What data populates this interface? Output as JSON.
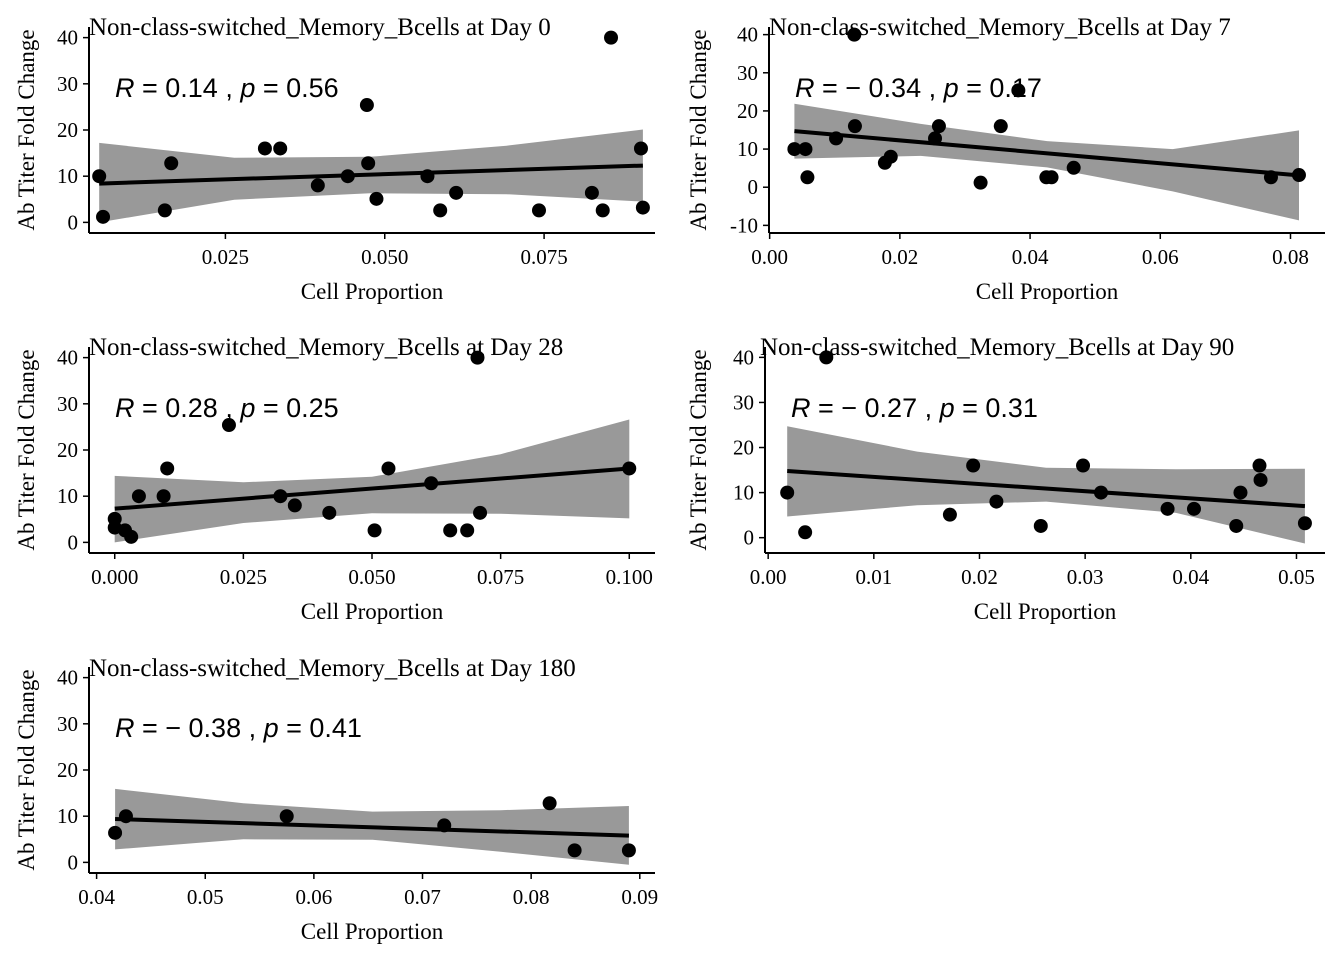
{
  "chart_data": [
    {
      "type": "scatter",
      "title": "Non-class-switched_Memory_Bcells at Day 0",
      "xlabel": "Cell Proportion",
      "ylabel": "Ab Titer Fold Change",
      "stat_parts": [
        "R",
        " = 0.14 , ",
        "p",
        " = 0.56"
      ],
      "xlim": [
        0.0036,
        0.0924
      ],
      "ylim": [
        -2.3,
        42.3
      ],
      "xticks": [
        0.025,
        0.05,
        0.075
      ],
      "xtick_labels": [
        "0.025",
        "0.050",
        "0.075"
      ],
      "yticks": [
        0,
        10,
        20,
        30,
        40
      ],
      "ytick_labels": [
        "0",
        "10",
        "20",
        "30",
        "40"
      ],
      "points": [
        [
          0.0052,
          10
        ],
        [
          0.0058,
          1.2
        ],
        [
          0.0155,
          2.6
        ],
        [
          0.0165,
          12.8
        ],
        [
          0.0312,
          16
        ],
        [
          0.0336,
          16
        ],
        [
          0.0395,
          8
        ],
        [
          0.0442,
          10
        ],
        [
          0.0472,
          25.4
        ],
        [
          0.0474,
          12.8
        ],
        [
          0.0487,
          5.1
        ],
        [
          0.0567,
          10
        ],
        [
          0.0587,
          2.6
        ],
        [
          0.0612,
          6.4
        ],
        [
          0.0742,
          2.6
        ],
        [
          0.0825,
          6.4
        ],
        [
          0.0842,
          2.6
        ],
        [
          0.0855,
          40
        ],
        [
          0.0902,
          16
        ],
        [
          0.0905,
          3.2
        ]
      ],
      "fit": {
        "x": [
          0.0052,
          0.0905
        ],
        "y": [
          8.4,
          12.3
        ]
      },
      "band": {
        "x": [
          0.0052,
          0.0264,
          0.0477,
          0.0691,
          0.0905
        ],
        "lower": [
          0.0,
          4.9,
          6.3,
          6.1,
          4.5
        ],
        "upper": [
          17.2,
          14.0,
          14.2,
          16.6,
          20.1
        ]
      }
    },
    {
      "type": "scatter",
      "title": "Non-class-switched_Memory_Bcells at Day 7",
      "xlabel": "Cell Proportion",
      "ylabel": "Ab Titer Fold Change",
      "stat_parts": [
        "R",
        " = − 0.34 , ",
        "p",
        " = 0.17"
      ],
      "xlim": [
        -0.0001,
        0.0853
      ],
      "ylim": [
        -12.0,
        42.0
      ],
      "xticks": [
        0.0,
        0.02,
        0.04,
        0.06,
        0.08
      ],
      "xtick_labels": [
        "0.00",
        "0.02",
        "0.04",
        "0.06",
        "0.08"
      ],
      "yticks": [
        -10,
        0,
        10,
        20,
        30,
        40
      ],
      "ytick_labels": [
        "-10",
        "0",
        "10",
        "20",
        "30",
        "40"
      ],
      "points": [
        [
          0.0038,
          10
        ],
        [
          0.0055,
          10
        ],
        [
          0.0058,
          2.6
        ],
        [
          0.0102,
          12.8
        ],
        [
          0.013,
          40
        ],
        [
          0.0131,
          16
        ],
        [
          0.0177,
          6.4
        ],
        [
          0.0186,
          8
        ],
        [
          0.0254,
          12.8
        ],
        [
          0.026,
          16
        ],
        [
          0.0324,
          1.2
        ],
        [
          0.0355,
          16
        ],
        [
          0.0382,
          25.4
        ],
        [
          0.0425,
          2.6
        ],
        [
          0.0433,
          2.6
        ],
        [
          0.0467,
          5.1
        ],
        [
          0.077,
          2.6
        ],
        [
          0.0813,
          3.2
        ]
      ],
      "fit": {
        "x": [
          0.0038,
          0.0813
        ],
        "y": [
          14.7,
          3.1
        ]
      },
      "band": {
        "x": [
          0.0038,
          0.0232,
          0.0426,
          0.0619,
          0.0813
        ],
        "lower": [
          7.5,
          8.2,
          5.2,
          -1.1,
          -8.7
        ],
        "upper": [
          21.9,
          16.6,
          12.1,
          10.0,
          14.9
        ]
      }
    },
    {
      "type": "scatter",
      "title": "Non-class-switched_Memory_Bcells at Day 28",
      "xlabel": "Cell Proportion",
      "ylabel": "Ab Titer Fold Change",
      "stat_parts": [
        "R",
        " = 0.28 , ",
        "p",
        " = 0.25"
      ],
      "xlim": [
        -0.005,
        0.105
      ],
      "ylim": [
        -2.3,
        42.3
      ],
      "xticks": [
        0.0,
        0.025,
        0.05,
        0.075,
        0.1
      ],
      "xtick_labels": [
        "0.000",
        "0.025",
        "0.050",
        "0.075",
        "0.100"
      ],
      "yticks": [
        0,
        10,
        20,
        30,
        40
      ],
      "ytick_labels": [
        "0",
        "10",
        "20",
        "30",
        "40"
      ],
      "points": [
        [
          0.0,
          5.1
        ],
        [
          0.0,
          3.2
        ],
        [
          0.002,
          2.6
        ],
        [
          0.0032,
          1.2
        ],
        [
          0.0047,
          10
        ],
        [
          0.0095,
          10
        ],
        [
          0.0102,
          16
        ],
        [
          0.0222,
          25.4
        ],
        [
          0.0322,
          10
        ],
        [
          0.035,
          8
        ],
        [
          0.0417,
          6.4
        ],
        [
          0.0505,
          2.6
        ],
        [
          0.0532,
          16
        ],
        [
          0.0615,
          12.8
        ],
        [
          0.0652,
          2.6
        ],
        [
          0.0685,
          2.6
        ],
        [
          0.0705,
          40
        ],
        [
          0.071,
          6.4
        ],
        [
          0.1,
          16
        ]
      ],
      "fit": {
        "x": [
          0.0,
          0.1
        ],
        "y": [
          7.3,
          16.0
        ]
      },
      "band": {
        "x": [
          0.0,
          0.025,
          0.05,
          0.075,
          0.1
        ],
        "lower": [
          0.0,
          4.2,
          6.3,
          6.2,
          5.2
        ],
        "upper": [
          14.4,
          13.0,
          14.2,
          19.1,
          26.6
        ]
      }
    },
    {
      "type": "scatter",
      "title": "Non-class-switched_Memory_Bcells at Day 90",
      "xlabel": "Cell Proportion",
      "ylabel": "Ab Titer Fold Change",
      "stat_parts": [
        "R",
        " = − 0.27 , ",
        "p",
        " = 0.31"
      ],
      "xlim": [
        -0.0003,
        0.0527
      ],
      "ylim": [
        -3.4,
        42.3
      ],
      "xticks": [
        0.0,
        0.01,
        0.02,
        0.03,
        0.04,
        0.05
      ],
      "xtick_labels": [
        "0.00",
        "0.01",
        "0.02",
        "0.03",
        "0.04",
        "0.05"
      ],
      "yticks": [
        0,
        10,
        20,
        30,
        40
      ],
      "ytick_labels": [
        "0",
        "10",
        "20",
        "30",
        "40"
      ],
      "points": [
        [
          0.0018,
          10
        ],
        [
          0.0035,
          1.2
        ],
        [
          0.0055,
          40
        ],
        [
          0.0172,
          5.1
        ],
        [
          0.0194,
          16
        ],
        [
          0.0216,
          8
        ],
        [
          0.0258,
          2.6
        ],
        [
          0.0298,
          16
        ],
        [
          0.0315,
          10
        ],
        [
          0.0378,
          6.4
        ],
        [
          0.0403,
          6.4
        ],
        [
          0.0443,
          2.6
        ],
        [
          0.0447,
          10
        ],
        [
          0.0465,
          16
        ],
        [
          0.0466,
          12.8
        ],
        [
          0.0508,
          3.2
        ]
      ],
      "fit": {
        "x": [
          0.0018,
          0.0508
        ],
        "y": [
          14.8,
          7.0
        ]
      },
      "band": {
        "x": [
          0.0018,
          0.0141,
          0.0263,
          0.0386,
          0.0508
        ],
        "lower": [
          4.7,
          7.2,
          8.0,
          5.5,
          -1.3
        ],
        "upper": [
          24.7,
          19.1,
          15.5,
          15.2,
          15.3
        ]
      }
    },
    {
      "type": "scatter",
      "title": "Non-class-switched_Memory_Bcells at Day 180",
      "xlabel": "Cell Proportion",
      "ylabel": "Ab Titer Fold Change",
      "stat_parts": [
        "R",
        " = − 0.38 , ",
        "p",
        " = 0.41"
      ],
      "xlim": [
        0.0393,
        0.0914
      ],
      "ylim": [
        -2.3,
        42.3
      ],
      "xticks": [
        0.04,
        0.05,
        0.06,
        0.07,
        0.08,
        0.09
      ],
      "xtick_labels": [
        "0.04",
        "0.05",
        "0.06",
        "0.07",
        "0.08",
        "0.09"
      ],
      "yticks": [
        0,
        10,
        20,
        30,
        40
      ],
      "ytick_labels": [
        "0",
        "10",
        "20",
        "30",
        "40"
      ],
      "points": [
        [
          0.0417,
          6.4
        ],
        [
          0.0427,
          10
        ],
        [
          0.0575,
          10
        ],
        [
          0.072,
          8
        ],
        [
          0.0817,
          12.8
        ],
        [
          0.084,
          2.6
        ],
        [
          0.089,
          2.6
        ]
      ],
      "fit": {
        "x": [
          0.0417,
          0.089
        ],
        "y": [
          9.4,
          5.8
        ]
      },
      "band": {
        "x": [
          0.0417,
          0.0535,
          0.0654,
          0.0772,
          0.089
        ],
        "lower": [
          2.8,
          5.0,
          4.9,
          2.3,
          -0.5
        ],
        "upper": [
          15.9,
          12.8,
          11.0,
          11.3,
          12.2
        ]
      }
    }
  ]
}
